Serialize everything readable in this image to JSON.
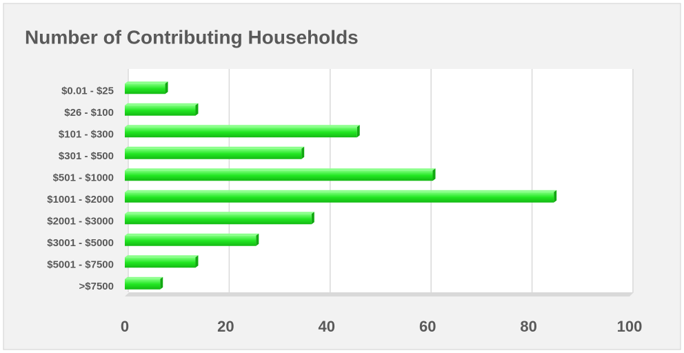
{
  "chart_data": {
    "type": "bar",
    "orientation": "horizontal",
    "title": "Number of Contributing Households",
    "categories": [
      "$0.01 - $25",
      "$26 - $100",
      "$101 - $300",
      "$301 - $500",
      "$501 - $1000",
      "$1001 - $2000",
      "$2001 - $3000",
      "$3001 - $5000",
      "$5001 - $7500",
      ">$7500"
    ],
    "values": [
      8,
      14,
      46,
      35,
      61,
      85,
      37,
      26,
      14,
      7
    ],
    "color": "#22e622",
    "xlim": [
      0,
      100
    ],
    "xticks": [
      0,
      20,
      40,
      60,
      80,
      100
    ],
    "grid": true
  }
}
